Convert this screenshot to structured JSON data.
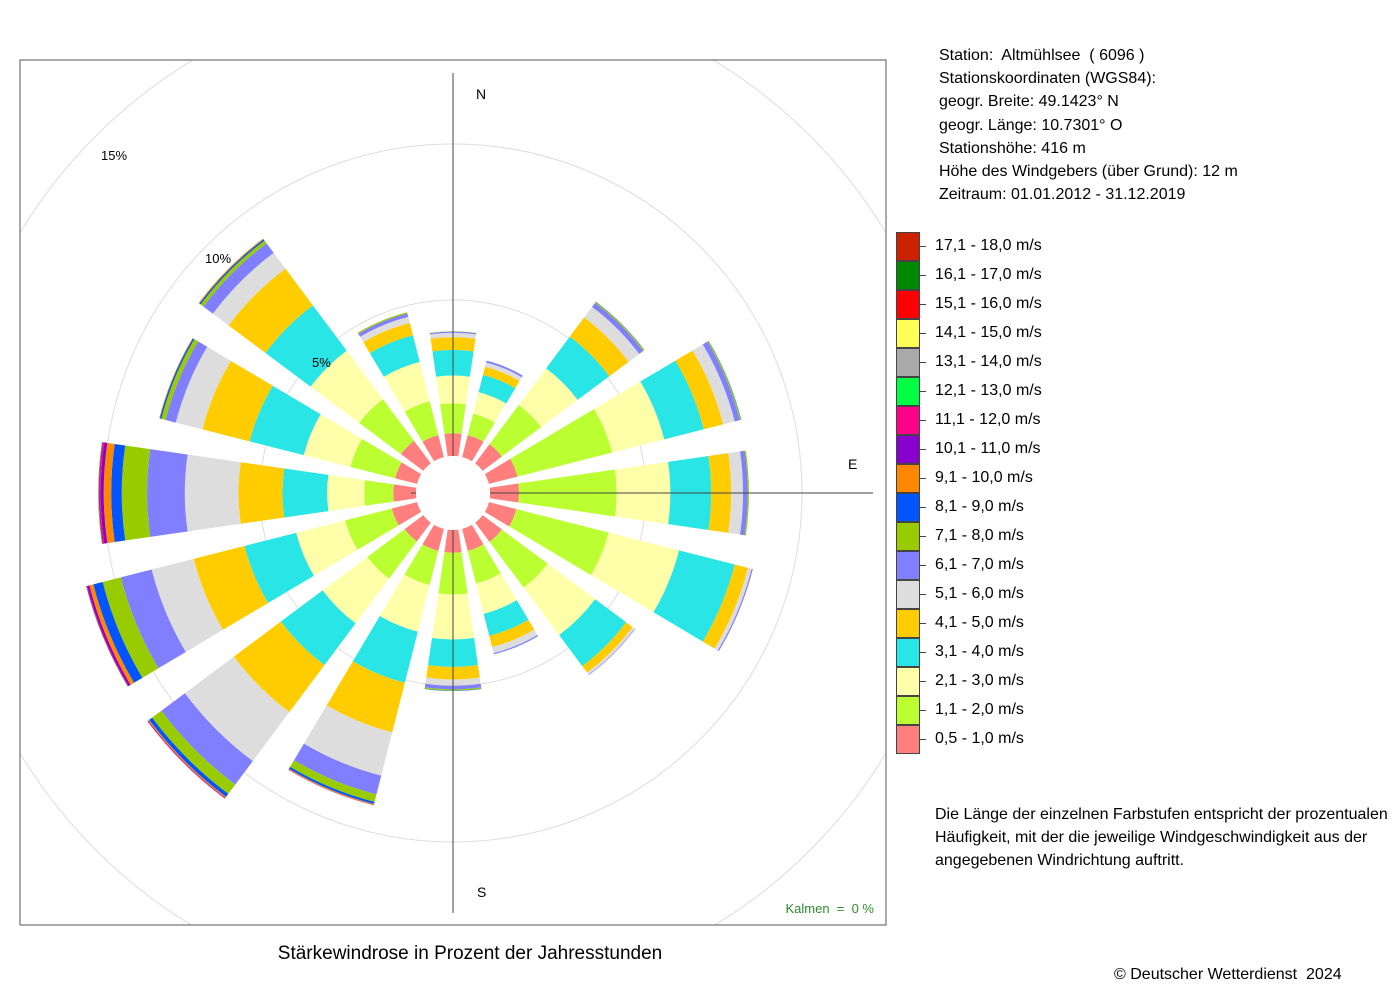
{
  "chart_data": {
    "type": "wind-rose",
    "title": "Stärkewindrose in Prozent der Jahresstunden",
    "directions": [
      "N",
      "NNE",
      "NE",
      "ENE",
      "E",
      "ESE",
      "SE",
      "SSE",
      "S",
      "SSW",
      "SW",
      "WSW",
      "W",
      "WNW",
      "NW",
      "NNW"
    ],
    "direction_labels": {
      "N": "N",
      "E": "E",
      "S": "S"
    },
    "radial_ticks": [
      5,
      10,
      15
    ],
    "radial_tick_labels": [
      "5%",
      "10%",
      "15%"
    ],
    "calms_text": "Kalmen  =  0 %",
    "speed_classes": [
      {
        "label": "0,5 - 1,0 m/s",
        "color": "#FF7F7F"
      },
      {
        "label": "1,1 - 2,0 m/s",
        "color": "#BBFF33"
      },
      {
        "label": "2,1 - 3,0 m/s",
        "color": "#FFFFAA"
      },
      {
        "label": "3,1 - 4,0 m/s",
        "color": "#2AE5E5"
      },
      {
        "label": "4,1 - 5,0 m/s",
        "color": "#FFCC00"
      },
      {
        "label": "5,1 - 6,0 m/s",
        "color": "#DDDDDD"
      },
      {
        "label": "6,1 - 7,0 m/s",
        "color": "#7F7FFF"
      },
      {
        "label": "7,1 - 8,0 m/s",
        "color": "#99CC00"
      },
      {
        "label": "8,1 - 9,0 m/s",
        "color": "#0055FF"
      },
      {
        "label": "9,1 - 10,0 m/s",
        "color": "#FF8800"
      },
      {
        "label": "10,1 - 11,0 m/s",
        "color": "#8800CC"
      },
      {
        "label": "11,1 - 12,0 m/s",
        "color": "#FF0088"
      },
      {
        "label": "12,1 - 13,0 m/s",
        "color": "#00FF44"
      },
      {
        "label": "13,1 - 14,0 m/s",
        "color": "#AAAAAA"
      },
      {
        "label": "14,1 - 15,0 m/s",
        "color": "#FFFF55"
      },
      {
        "label": "15,1 - 16,0 m/s",
        "color": "#FF0000"
      },
      {
        "label": "16,1 - 17,0 m/s",
        "color": "#008800"
      },
      {
        "label": "17,1 - 18,0 m/s",
        "color": "#CC2200"
      }
    ],
    "series": [
      {
        "direction": "N",
        "values": [
          0.73,
          0.96,
          0.89,
          0.82,
          0.41,
          0.14,
          0.04,
          0.01
        ]
      },
      {
        "direction": "NNE",
        "values": [
          0.73,
          0.71,
          0.71,
          0.57,
          0.27,
          0.14,
          0.06
        ]
      },
      {
        "direction": "NE",
        "values": [
          0.77,
          1.57,
          1.46,
          1.27,
          0.77,
          0.42,
          0.16,
          0.04,
          0.01
        ]
      },
      {
        "direction": "ENE",
        "values": [
          0.95,
          3.13,
          1.72,
          1.31,
          0.64,
          0.38,
          0.17,
          0.04,
          0.01
        ]
      },
      {
        "direction": "E",
        "values": [
          0.93,
          3.13,
          1.72,
          1.31,
          0.64,
          0.38,
          0.15,
          0.04
        ]
      },
      {
        "direction": "ESE",
        "values": [
          0.91,
          3.05,
          2.33,
          1.84,
          0.44,
          0.12,
          0.04
        ]
      },
      {
        "direction": "SE",
        "values": [
          0.77,
          1.83,
          1.9,
          1.24,
          0.26,
          0.08,
          0.02
        ]
      },
      {
        "direction": "SSE",
        "values": [
          0.73,
          1.08,
          1.0,
          0.73,
          0.37,
          0.2,
          0.04
        ]
      },
      {
        "direction": "S",
        "values": [
          0.73,
          1.34,
          1.44,
          0.88,
          0.4,
          0.2,
          0.12,
          0.04,
          0.01
        ]
      },
      {
        "direction": "SSW",
        "values": [
          0.73,
          1.13,
          1.54,
          1.69,
          1.64,
          1.43,
          0.62,
          0.25,
          0.07,
          0.03,
          0.01
        ]
      },
      {
        "direction": "SW",
        "values": [
          0.75,
          1.49,
          1.79,
          1.67,
          1.88,
          1.96,
          0.94,
          0.37,
          0.12,
          0.04,
          0.02,
          0.01
        ]
      },
      {
        "direction": "WSW",
        "values": [
          0.84,
          1.54,
          1.62,
          1.71,
          1.68,
          1.39,
          1.02,
          0.6,
          0.31,
          0.13,
          0.07,
          0.03,
          0.01
        ]
      },
      {
        "direction": "W",
        "values": [
          0.73,
          0.93,
          1.19,
          1.43,
          1.41,
          1.72,
          1.21,
          0.81,
          0.34,
          0.24,
          0.1,
          0.06,
          0.02
        ]
      },
      {
        "direction": "WNW",
        "values": [
          0.73,
          1.48,
          1.54,
          1.79,
          1.56,
          0.88,
          0.34,
          0.14,
          0.05,
          0.02
        ]
      },
      {
        "direction": "NW",
        "values": [
          0.9,
          1.67,
          1.94,
          1.81,
          1.47,
          0.63,
          0.38,
          0.11,
          0.05,
          0.03
        ]
      },
      {
        "direction": "NNW",
        "values": [
          0.73,
          1.12,
          1.3,
          0.88,
          0.41,
          0.2,
          0.11,
          0.04
        ]
      }
    ]
  },
  "station": {
    "line1": "Station:  Altmühlsee  ( 6096 )",
    "line2": "Stationskoordinaten (WGS84):",
    "line3": "geogr. Breite: 49.1423° N",
    "line4": "geogr. Länge: 10.7301° O",
    "line5": "Stationshöhe: 416 m",
    "line6": "Höhe des Windgebers (über Grund): 12 m",
    "line7": "Zeitraum: 01.01.2012 - 31.12.2019"
  },
  "note": "Die Länge der einzelnen Farbstufen entspricht der prozentualen Häufigkeit, mit der die jeweilige Windgeschwindigkeit aus der angegebenen Windrichtung auftritt.",
  "copyright": "© Deutscher Wetterdienst  2024"
}
